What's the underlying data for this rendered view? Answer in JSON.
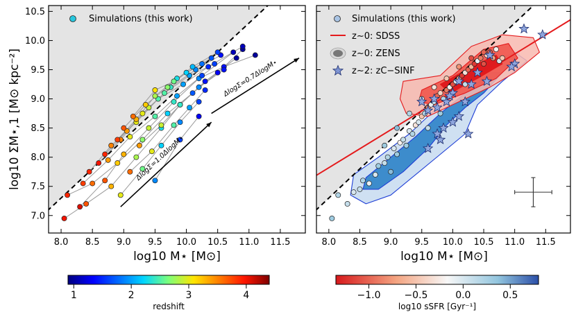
{
  "chart_data": [
    {
      "type": "scatter",
      "panel": "left",
      "xlabel": "log10 M⋆ [M⊙]",
      "ylabel": "log10 ΣM⋆,1 [M⊙ kpc⁻²]",
      "xlim": [
        7.8,
        11.9
      ],
      "ylim": [
        6.7,
        10.6
      ],
      "xticks": [
        "8.0",
        "8.5",
        "9.0",
        "9.5",
        "10.0",
        "10.5",
        "11.0",
        "11.5"
      ],
      "yticks": [
        "7.0",
        "7.5",
        "8.0",
        "8.5",
        "9.0",
        "9.5",
        "10.0",
        "10.5"
      ],
      "legend": "Simulations (this work)",
      "annotations": [
        "ΔlogΣ=1.0ΔlogM⋆",
        "ΔlogΣ=0.7ΔlogM⋆"
      ],
      "forbidden_line": {
        "slope": 1.0,
        "intercept": -0.7
      },
      "arrows": [
        {
          "from": [
            8.95,
            7.15
          ],
          "to": [
            10.4,
            8.6
          ],
          "label": "ΔlogΣ=1.0ΔlogM⋆"
        },
        {
          "from": [
            10.4,
            8.75
          ],
          "to": [
            11.8,
            9.7
          ],
          "label": "ΔlogΣ=0.7ΔlogM⋆"
        }
      ],
      "colorbar": {
        "label": "redshift",
        "range": [
          0.9,
          4.4
        ],
        "ticks": [
          "1",
          "2",
          "3",
          "4"
        ]
      },
      "tracks": [
        [
          [
            8.05,
            6.95,
            4.0
          ],
          [
            8.4,
            7.2,
            3.7
          ],
          [
            8.8,
            7.5,
            3.3
          ],
          [
            9.2,
            8.0,
            2.8
          ],
          [
            9.6,
            8.5,
            2.3
          ],
          [
            9.9,
            8.9,
            1.8
          ],
          [
            10.3,
            9.3,
            1.4
          ],
          [
            10.8,
            9.7,
            1.0
          ]
        ],
        [
          [
            8.1,
            7.35,
            3.9
          ],
          [
            8.5,
            7.55,
            3.6
          ],
          [
            8.9,
            7.9,
            3.2
          ],
          [
            9.3,
            8.3,
            2.7
          ],
          [
            9.7,
            8.75,
            2.2
          ],
          [
            10.1,
            9.1,
            1.7
          ],
          [
            10.5,
            9.45,
            1.3
          ],
          [
            10.9,
            9.85,
            1.0
          ]
        ],
        [
          [
            8.3,
            7.15,
            4.1
          ],
          [
            8.7,
            7.6,
            3.7
          ],
          [
            9.0,
            8.05,
            3.3
          ],
          [
            9.4,
            8.5,
            2.9
          ],
          [
            9.8,
            8.95,
            2.4
          ],
          [
            10.2,
            9.35,
            1.9
          ],
          [
            10.6,
            9.55,
            1.4
          ],
          [
            11.1,
            9.75,
            1.0
          ]
        ],
        [
          [
            8.35,
            7.55,
            3.8
          ],
          [
            8.75,
            7.95,
            3.4
          ],
          [
            9.1,
            8.35,
            3.0
          ],
          [
            9.5,
            8.7,
            2.5
          ],
          [
            9.85,
            9.05,
            2.0
          ],
          [
            10.25,
            9.4,
            1.6
          ],
          [
            10.75,
            9.8,
            1.1
          ]
        ],
        [
          [
            8.45,
            7.75,
            3.9
          ],
          [
            8.8,
            8.2,
            3.5
          ],
          [
            9.2,
            8.6,
            3.0
          ],
          [
            9.55,
            9.0,
            2.5
          ],
          [
            9.95,
            9.25,
            2.0
          ],
          [
            10.35,
            9.55,
            1.5
          ],
          [
            10.9,
            9.9,
            1.1
          ]
        ],
        [
          [
            8.6,
            7.9,
            4.0
          ],
          [
            8.95,
            8.3,
            3.5
          ],
          [
            9.3,
            8.75,
            3.0
          ],
          [
            9.65,
            9.1,
            2.5
          ],
          [
            10.05,
            9.4,
            2.0
          ],
          [
            10.45,
            9.6,
            1.6
          ]
        ],
        [
          [
            8.7,
            8.05,
            3.9
          ],
          [
            9.05,
            8.45,
            3.4
          ],
          [
            9.4,
            8.85,
            2.9
          ],
          [
            9.75,
            9.2,
            2.4
          ],
          [
            10.15,
            9.5,
            1.9
          ],
          [
            10.55,
            9.75,
            1.4
          ]
        ],
        [
          [
            8.95,
            7.35,
            3.0
          ],
          [
            9.3,
            7.8,
            2.6
          ],
          [
            9.6,
            8.2,
            2.2
          ],
          [
            9.9,
            8.6,
            1.9
          ],
          [
            10.2,
            8.95,
            1.6
          ]
        ],
        [
          [
            8.9,
            8.3,
            3.8
          ],
          [
            9.2,
            8.65,
            3.3
          ],
          [
            9.5,
            9.05,
            2.8
          ],
          [
            9.85,
            9.35,
            2.3
          ],
          [
            10.25,
            9.6,
            1.8
          ]
        ],
        [
          [
            9.0,
            8.5,
            3.7
          ],
          [
            9.35,
            8.9,
            3.2
          ],
          [
            9.7,
            9.2,
            2.7
          ],
          [
            10.0,
            9.45,
            2.2
          ],
          [
            10.4,
            9.7,
            1.7
          ]
        ],
        [
          [
            9.1,
            7.75,
            3.6
          ],
          [
            9.45,
            8.1,
            3.0
          ],
          [
            9.8,
            8.55,
            2.5
          ],
          [
            10.05,
            8.85,
            2.0
          ],
          [
            10.3,
            9.15,
            1.5
          ]
        ],
        [
          [
            9.15,
            8.7,
            3.6
          ],
          [
            9.5,
            9.15,
            3.1
          ],
          [
            9.8,
            9.3,
            2.6
          ],
          [
            10.1,
            9.55,
            2.1
          ],
          [
            10.5,
            9.8,
            1.6
          ]
        ],
        [
          [
            9.25,
            8.2,
            3.4
          ],
          [
            9.6,
            8.55,
            2.9
          ],
          [
            9.9,
            8.9,
            2.4
          ],
          [
            10.2,
            9.2,
            1.9
          ],
          [
            10.6,
            9.5,
            1.4
          ]
        ],
        [
          [
            9.5,
            7.6,
            1.9
          ],
          [
            9.9,
            8.3,
            1.6
          ],
          [
            10.2,
            8.7,
            1.3
          ]
        ]
      ]
    },
    {
      "type": "scatter",
      "panel": "right",
      "xlabel": "log10 M⋆ [M⊙]",
      "xlim": [
        7.8,
        11.9
      ],
      "ylim": [
        6.7,
        10.6
      ],
      "xticks": [
        "8.0",
        "8.5",
        "9.0",
        "9.5",
        "10.0",
        "10.5",
        "11.0",
        "11.5"
      ],
      "legend": [
        "Simulations (this work)",
        "z∼0: SDSS",
        "z∼0: ZENS",
        "z∼2: zC−SINF"
      ],
      "sdss_line": {
        "slope": 0.65,
        "intercept": 2.62
      },
      "colorbar": {
        "label": "log10 sSFR [Gyr⁻¹]",
        "range": [
          -1.35,
          0.8
        ],
        "ticks": [
          "−1.0",
          "−0.5",
          "0.0",
          "0.5"
        ]
      },
      "error_bar": {
        "x": 11.3,
        "y": 7.4,
        "dx": 0.3,
        "dy": 0.25
      },
      "zcsinf": [
        [
          11.15,
          10.2
        ],
        [
          11.45,
          10.1
        ],
        [
          11.0,
          9.6
        ],
        [
          10.95,
          9.55
        ],
        [
          10.6,
          9.75
        ],
        [
          10.4,
          9.45
        ],
        [
          10.3,
          9.25
        ],
        [
          10.1,
          9.3
        ],
        [
          10.0,
          9.1
        ],
        [
          9.9,
          8.95
        ],
        [
          9.75,
          8.85
        ],
        [
          9.6,
          8.8
        ],
        [
          9.5,
          8.95
        ],
        [
          9.7,
          9.0
        ],
        [
          10.2,
          8.95
        ],
        [
          10.1,
          8.7
        ],
        [
          10.0,
          8.6
        ],
        [
          9.85,
          8.5
        ],
        [
          9.8,
          8.3
        ],
        [
          9.75,
          8.4
        ],
        [
          9.6,
          8.15
        ],
        [
          10.25,
          8.4
        ],
        [
          10.55,
          9.3
        ],
        [
          9.95,
          9.05
        ]
      ],
      "sims": [
        [
          8.05,
          6.95,
          0.3
        ],
        [
          8.15,
          7.35,
          0.2
        ],
        [
          8.3,
          7.2,
          0.1
        ],
        [
          8.4,
          7.4,
          0.0
        ],
        [
          8.5,
          7.45,
          0.1
        ],
        [
          8.55,
          7.6,
          0.2
        ],
        [
          8.65,
          7.55,
          -0.1
        ],
        [
          8.75,
          7.7,
          0.0
        ],
        [
          8.8,
          7.85,
          0.3
        ],
        [
          8.9,
          7.9,
          0.1
        ],
        [
          8.95,
          8.0,
          0.2
        ],
        [
          9.0,
          7.75,
          0.4
        ],
        [
          9.05,
          8.15,
          0.0
        ],
        [
          9.1,
          8.05,
          0.3
        ],
        [
          9.15,
          8.25,
          -0.2
        ],
        [
          9.2,
          8.3,
          0.1
        ],
        [
          9.25,
          8.2,
          0.3
        ],
        [
          9.3,
          8.45,
          0.0
        ],
        [
          9.35,
          8.4,
          0.2
        ],
        [
          9.4,
          8.55,
          -0.3
        ],
        [
          9.45,
          8.6,
          0.0
        ],
        [
          9.5,
          8.7,
          -0.5
        ],
        [
          9.55,
          8.75,
          0.2
        ],
        [
          9.6,
          8.85,
          -0.8
        ],
        [
          9.65,
          8.9,
          -0.1
        ],
        [
          9.7,
          8.95,
          0.1
        ],
        [
          9.75,
          9.05,
          -1.0
        ],
        [
          9.8,
          9.1,
          -0.4
        ],
        [
          9.85,
          9.0,
          0.2
        ],
        [
          9.9,
          9.15,
          -0.9
        ],
        [
          9.95,
          9.2,
          -0.2
        ],
        [
          10.0,
          9.25,
          -1.1
        ],
        [
          10.05,
          9.3,
          0.0
        ],
        [
          10.1,
          9.35,
          -0.7
        ],
        [
          10.15,
          9.4,
          -1.2
        ],
        [
          10.2,
          9.45,
          -0.3
        ],
        [
          10.25,
          9.5,
          -1.0
        ],
        [
          10.3,
          9.55,
          -0.6
        ],
        [
          10.35,
          9.6,
          -1.2
        ],
        [
          10.4,
          9.65,
          -0.1
        ],
        [
          10.45,
          9.7,
          -0.9
        ],
        [
          10.5,
          9.6,
          -1.1
        ],
        [
          10.55,
          9.75,
          -0.4
        ],
        [
          10.6,
          9.8,
          -1.0
        ],
        [
          10.65,
          9.7,
          -0.7
        ],
        [
          10.7,
          9.85,
          -0.2
        ],
        [
          10.5,
          9.8,
          -1.0
        ],
        [
          10.3,
          9.7,
          -1.1
        ],
        [
          10.1,
          9.55,
          -0.8
        ],
        [
          9.9,
          9.35,
          -0.5
        ],
        [
          9.7,
          9.2,
          -0.3
        ],
        [
          9.5,
          9.0,
          0.0
        ],
        [
          9.3,
          8.75,
          0.2
        ],
        [
          9.1,
          8.5,
          0.4
        ],
        [
          8.9,
          8.2,
          0.3
        ],
        [
          10.75,
          9.65,
          0.0
        ],
        [
          10.8,
          9.7,
          -0.5
        ],
        [
          10.2,
          9.25,
          0.1
        ],
        [
          9.8,
          8.75,
          0.3
        ],
        [
          9.6,
          8.5,
          0.1
        ]
      ],
      "contours": {
        "sdss_outer": [
          [
            9.2,
            9.3
          ],
          [
            9.8,
            9.4
          ],
          [
            10.3,
            9.9
          ],
          [
            10.8,
            10.1
          ],
          [
            11.3,
            10.05
          ],
          [
            11.4,
            9.8
          ],
          [
            11.0,
            9.45
          ],
          [
            10.6,
            9.2
          ],
          [
            10.1,
            8.95
          ],
          [
            9.6,
            8.7
          ],
          [
            9.25,
            8.75
          ],
          [
            9.15,
            9.0
          ]
        ],
        "sdss_middle": [
          [
            9.5,
            9.15
          ],
          [
            10.0,
            9.4
          ],
          [
            10.5,
            9.85
          ],
          [
            10.9,
            9.95
          ],
          [
            11.05,
            9.7
          ],
          [
            10.7,
            9.35
          ],
          [
            10.2,
            9.1
          ],
          [
            9.7,
            8.9
          ],
          [
            9.45,
            8.95
          ]
        ],
        "sdss_inner": [
          [
            9.8,
            9.25
          ],
          [
            10.3,
            9.55
          ],
          [
            10.7,
            9.75
          ],
          [
            10.8,
            9.6
          ],
          [
            10.4,
            9.35
          ],
          [
            9.95,
            9.1
          ]
        ],
        "zens_outer": [
          [
            8.4,
            7.7
          ],
          [
            8.8,
            8.0
          ],
          [
            9.3,
            8.4
          ],
          [
            9.7,
            8.8
          ],
          [
            10.1,
            9.15
          ],
          [
            10.6,
            9.6
          ],
          [
            11.0,
            9.8
          ],
          [
            11.2,
            9.65
          ],
          [
            10.8,
            9.3
          ],
          [
            10.4,
            8.9
          ],
          [
            10.2,
            8.4
          ],
          [
            9.8,
            8.05
          ],
          [
            9.4,
            7.7
          ],
          [
            9.0,
            7.35
          ],
          [
            8.6,
            7.2
          ],
          [
            8.35,
            7.35
          ]
        ],
        "zens_inner": [
          [
            8.6,
            7.65
          ],
          [
            9.0,
            8.0
          ],
          [
            9.4,
            8.35
          ],
          [
            9.8,
            8.75
          ],
          [
            10.2,
            9.1
          ],
          [
            10.6,
            9.45
          ],
          [
            10.8,
            9.45
          ],
          [
            10.5,
            9.1
          ],
          [
            10.2,
            8.85
          ],
          [
            9.9,
            8.55
          ],
          [
            9.6,
            8.15
          ],
          [
            9.2,
            7.75
          ],
          [
            8.8,
            7.45
          ],
          [
            8.55,
            7.45
          ]
        ]
      }
    }
  ]
}
